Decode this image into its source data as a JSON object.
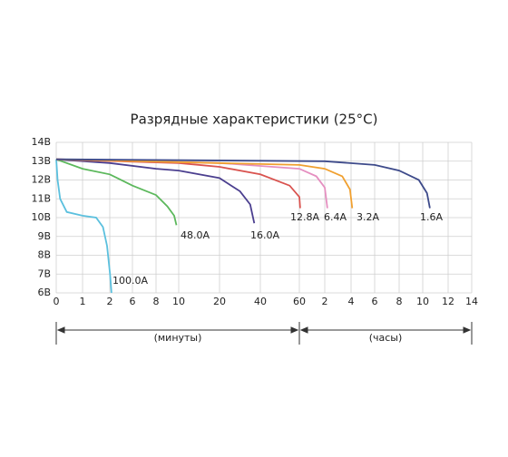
{
  "chart_data": {
    "type": "line",
    "title": "Разрядные характеристики (25°C)",
    "annotations": [
      "(минуты)",
      "(часы)"
    ],
    "grid": true,
    "ylim": [
      6,
      14
    ],
    "yticks": [
      {
        "value": 6,
        "label": "6В"
      },
      {
        "value": 7,
        "label": "7В"
      },
      {
        "value": 8,
        "label": "8В"
      },
      {
        "value": 9,
        "label": "9В"
      },
      {
        "value": 10,
        "label": "10В"
      },
      {
        "value": 11,
        "label": "11В"
      },
      {
        "value": 12,
        "label": "12В"
      },
      {
        "value": 13,
        "label": "13В"
      },
      {
        "value": 14,
        "label": "14В"
      }
    ],
    "xlim": [
      0,
      840
    ],
    "xticks": [
      0,
      1,
      2,
      6,
      8,
      10,
      20,
      40,
      60,
      {
        "value": 120,
        "label": "2"
      },
      {
        "value": 240,
        "label": "4"
      },
      {
        "value": 360,
        "label": "6"
      },
      {
        "value": 480,
        "label": "8"
      },
      {
        "value": 600,
        "label": "10"
      },
      {
        "value": 720,
        "label": "12"
      },
      {
        "value": 840,
        "label": "14"
      }
    ],
    "series": [
      {
        "name": "100.0A",
        "color": "#5bc0de",
        "x": [
          0,
          0.05,
          0.15,
          0.4,
          1,
          1.5,
          1.75,
          1.9,
          2.05,
          2.3
        ],
        "values": [
          13.1,
          12.0,
          11.0,
          10.3,
          10.1,
          10.0,
          9.5,
          8.5,
          7.0,
          6.0
        ]
      },
      {
        "name": "48.0A",
        "color": "#5cb85c",
        "x": [
          0,
          1,
          2,
          6,
          8,
          9,
          9.6,
          9.8
        ],
        "values": [
          13.1,
          12.6,
          12.3,
          11.7,
          11.2,
          10.6,
          10.1,
          9.6
        ]
      },
      {
        "name": "16.0A",
        "color": "#4b3f8f",
        "x": [
          0,
          2,
          8,
          10,
          20,
          30,
          35,
          37
        ],
        "values": [
          13.1,
          12.9,
          12.6,
          12.5,
          12.1,
          11.4,
          10.7,
          9.7
        ]
      },
      {
        "name": "12.8A",
        "color": "#d9534f",
        "x": [
          0,
          10,
          20,
          40,
          55,
          60,
          62
        ],
        "values": [
          13.1,
          12.9,
          12.7,
          12.3,
          11.7,
          11.1,
          10.5
        ]
      },
      {
        "name": "6.4A",
        "color": "#e58fc0",
        "x": [
          0,
          20,
          60,
          100,
          120,
          132
        ],
        "values": [
          13.1,
          12.9,
          12.6,
          12.2,
          11.6,
          10.5
        ]
      },
      {
        "name": "3.2A",
        "color": "#f0a030",
        "x": [
          0,
          60,
          120,
          200,
          235,
          246
        ],
        "values": [
          13.1,
          12.8,
          12.6,
          12.2,
          11.5,
          10.5
        ]
      },
      {
        "name": "1.6A",
        "color": "#3d4a8a",
        "x": [
          0,
          120,
          360,
          480,
          580,
          620,
          634
        ],
        "values": [
          13.1,
          13.0,
          12.8,
          12.5,
          12.0,
          11.3,
          10.5
        ]
      }
    ]
  }
}
